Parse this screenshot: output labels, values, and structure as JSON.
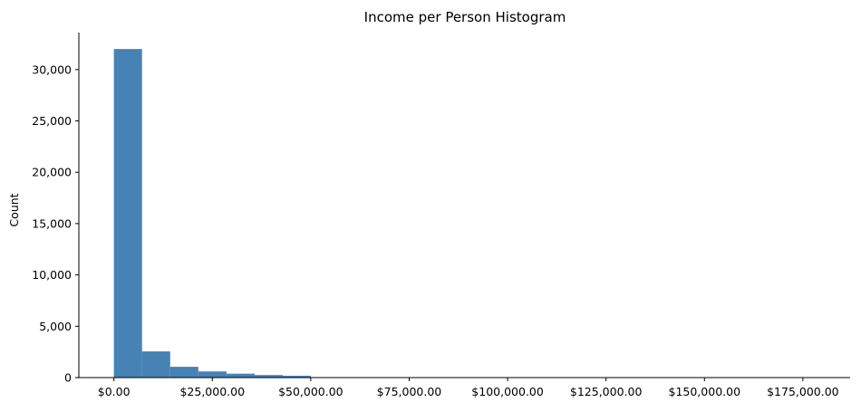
{
  "chart_data": {
    "type": "bar",
    "title": "Income per Person Histogram",
    "xlabel": "",
    "ylabel": "Count",
    "xlim": [
      -8900,
      187000
    ],
    "ylim": [
      0,
      33600
    ],
    "grid": false,
    "legend": "none",
    "bar_color": "#4682b4",
    "x_ticks": [
      {
        "value": 0,
        "label": "$0.00"
      },
      {
        "value": 25000,
        "label": "$25,000.00"
      },
      {
        "value": 50000,
        "label": "$50,000.00"
      },
      {
        "value": 75000,
        "label": "$75,000.00"
      },
      {
        "value": 100000,
        "label": "$100,000.00"
      },
      {
        "value": 125000,
        "label": "$125,000.00"
      },
      {
        "value": 150000,
        "label": "$150,000.00"
      },
      {
        "value": 175000,
        "label": "$175,000.00"
      }
    ],
    "y_ticks": [
      {
        "value": 0,
        "label": "0"
      },
      {
        "value": 5000,
        "label": "5,000"
      },
      {
        "value": 10000,
        "label": "10,000"
      },
      {
        "value": 15000,
        "label": "15,000"
      },
      {
        "value": 20000,
        "label": "20,000"
      },
      {
        "value": 25000,
        "label": "25,000"
      },
      {
        "value": 30000,
        "label": "30,000"
      }
    ],
    "bins": [
      {
        "x0": 0,
        "x1": 7150,
        "count": 32000
      },
      {
        "x0": 7150,
        "x1": 14300,
        "count": 2550
      },
      {
        "x0": 14300,
        "x1": 21450,
        "count": 1050
      },
      {
        "x0": 21450,
        "x1": 28600,
        "count": 600
      },
      {
        "x0": 28600,
        "x1": 35750,
        "count": 380
      },
      {
        "x0": 35750,
        "x1": 42900,
        "count": 250
      },
      {
        "x0": 42900,
        "x1": 50000,
        "count": 180
      },
      {
        "x0": 50000,
        "x1": 57150,
        "count": 12
      },
      {
        "x0": 57150,
        "x1": 64300,
        "count": 8
      },
      {
        "x0": 64300,
        "x1": 71450,
        "count": 6
      },
      {
        "x0": 71450,
        "x1": 78600,
        "count": 4
      },
      {
        "x0": 78600,
        "x1": 85750,
        "count": 3
      },
      {
        "x0": 85750,
        "x1": 92900,
        "count": 3
      },
      {
        "x0": 92900,
        "x1": 100050,
        "count": 2
      },
      {
        "x0": 100050,
        "x1": 107200,
        "count": 2
      },
      {
        "x0": 107200,
        "x1": 114350,
        "count": 1
      },
      {
        "x0": 114350,
        "x1": 121500,
        "count": 1
      },
      {
        "x0": 121500,
        "x1": 128650,
        "count": 1
      },
      {
        "x0": 128650,
        "x1": 135800,
        "count": 1
      },
      {
        "x0": 135800,
        "x1": 142950,
        "count": 1
      },
      {
        "x0": 142950,
        "x1": 150100,
        "count": 1
      },
      {
        "x0": 150100,
        "x1": 157250,
        "count": 1
      },
      {
        "x0": 157250,
        "x1": 164400,
        "count": 1
      },
      {
        "x0": 164400,
        "x1": 171550,
        "count": 1
      },
      {
        "x0": 171550,
        "x1": 178700,
        "count": 1
      }
    ]
  }
}
